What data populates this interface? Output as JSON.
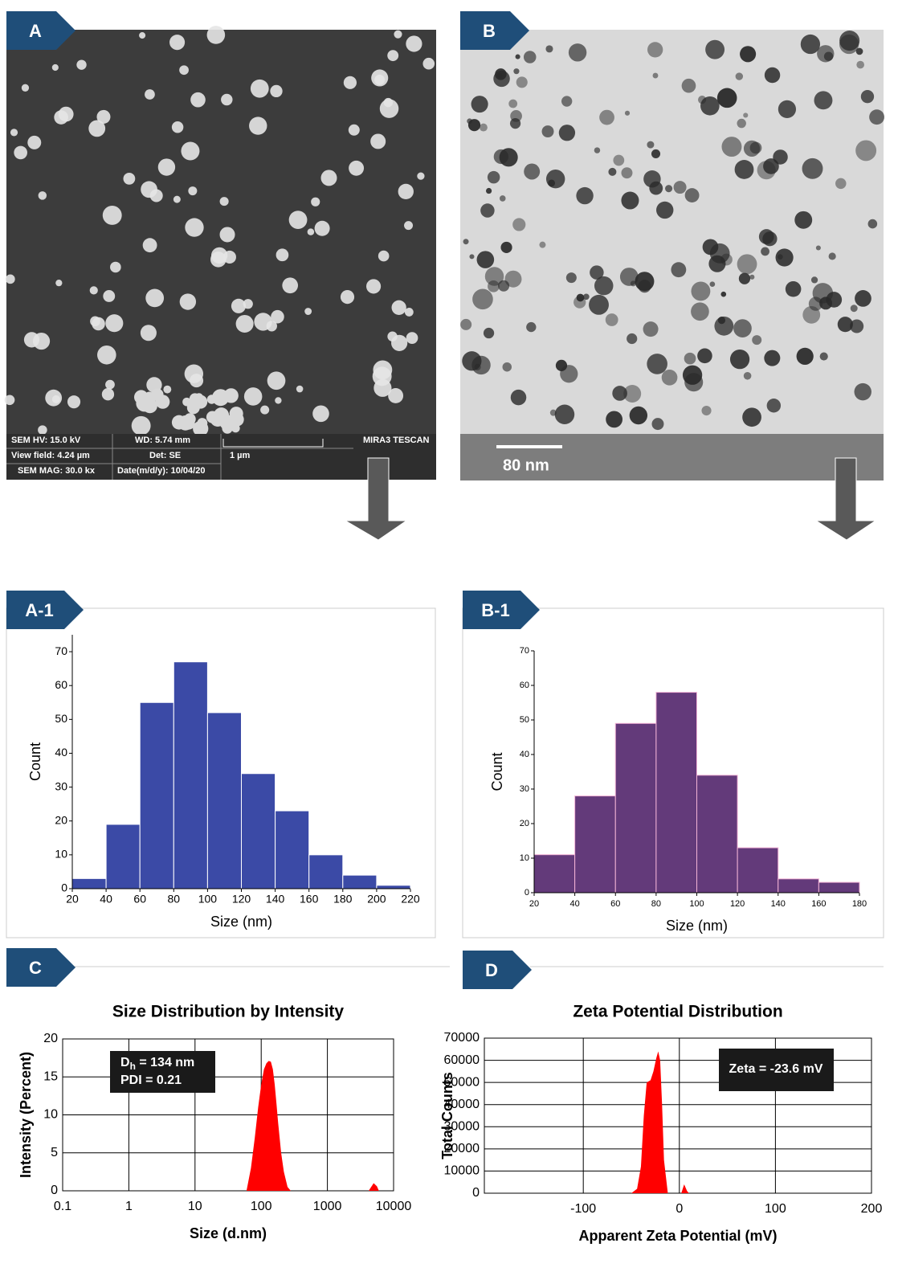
{
  "panel_labels": [
    "A",
    "B",
    "A-1",
    "B-1",
    "C",
    "D"
  ],
  "sem_info": [
    "SEM HV: 15.0 kV",
    "WD: 5.74 mm",
    "MIRA3 TESCAN",
    "View field: 4.24 µm",
    "Det: SE",
    "1 µm",
    "SEM MAG: 30.0 kx",
    "Date(m/d/y): 10/04/20"
  ],
  "tem_scale": "80 nm",
  "chart_data": [
    {
      "type": "histogram",
      "xlabel": "Size (nm)",
      "ylabel": "Count",
      "color": "#3b4aa6",
      "edgecolor": "#ffffff",
      "bins": [
        20,
        40,
        60,
        80,
        100,
        120,
        140,
        160,
        180,
        200,
        220
      ],
      "counts": [
        3,
        19,
        55,
        67,
        52,
        34,
        23,
        10,
        4,
        1
      ],
      "xlim": [
        20,
        220
      ],
      "xticks": [
        20,
        40,
        60,
        80,
        100,
        120,
        140,
        160,
        180,
        200,
        220
      ],
      "ylim": [
        0,
        75
      ],
      "yticks": [
        0,
        10,
        20,
        30,
        40,
        50,
        60,
        70
      ]
    },
    {
      "type": "histogram",
      "xlabel": "Size (nm)",
      "ylabel": "Count",
      "color": "#633a7a",
      "edgecolor": "#f3b3d6",
      "bins": [
        20,
        40,
        60,
        80,
        100,
        120,
        140,
        160,
        180
      ],
      "counts": [
        11,
        28,
        49,
        58,
        34,
        13,
        4,
        3
      ],
      "xlim": [
        20,
        180
      ],
      "xticks": [
        20,
        40,
        60,
        80,
        100,
        120,
        140,
        160,
        180
      ],
      "ylim": [
        0,
        70
      ],
      "yticks": [
        0,
        10,
        20,
        30,
        40,
        50,
        60,
        70
      ]
    },
    {
      "type": "area",
      "title": "Size Distribution by Intensity",
      "xlabel": "Size (d.nm)",
      "ylabel": "Intensity (Percent)",
      "color": "#ff0000",
      "xscale": "log",
      "grid": true,
      "x": [
        60,
        70,
        80,
        90,
        100,
        110,
        120,
        130,
        140,
        150,
        160,
        170,
        180,
        200,
        220,
        250,
        280,
        1000,
        4200,
        5000,
        5600,
        6000
      ],
      "values": [
        0,
        3,
        7,
        11,
        14,
        16,
        16.8,
        17.1,
        17,
        16,
        14,
        11.5,
        9,
        5,
        2.5,
        0.5,
        0,
        null,
        0,
        1,
        0.6,
        0
      ],
      "xlim": [
        0.1,
        10000
      ],
      "xticks": [
        0.1,
        1,
        10,
        100,
        1000,
        10000
      ],
      "ylim": [
        0,
        20
      ],
      "yticks": [
        0,
        5,
        10,
        15,
        20
      ],
      "annotation": {
        "symbol": "D",
        "subscript": "h",
        "text": " = 134 nm",
        "line2": "PDI = 0.21"
      }
    },
    {
      "type": "area",
      "title": "Zeta Potential Distribution",
      "xlabel": "Apparent Zeta Potential (mV)",
      "ylabel": "Total Counts",
      "color": "#ff0000",
      "xscale": "linear",
      "grid": true,
      "x": [
        -50,
        -44,
        -40,
        -37,
        -34,
        -30,
        -27,
        -24,
        -22,
        -20,
        -18,
        -16,
        -12,
        0,
        2,
        5,
        8,
        10
      ],
      "values": [
        0,
        2000,
        12000,
        35000,
        50000,
        51000,
        55000,
        61000,
        64000,
        60000,
        40000,
        15000,
        0,
        null,
        0,
        4000,
        1000,
        0
      ],
      "xlim": [
        -203,
        200
      ],
      "xticks": [
        -100,
        0,
        100,
        200
      ],
      "ylim": [
        0,
        70000
      ],
      "yticks": [
        0,
        10000,
        20000,
        30000,
        40000,
        50000,
        60000,
        70000
      ],
      "annotation": {
        "text": "Zeta = -23.6 mV"
      }
    }
  ]
}
